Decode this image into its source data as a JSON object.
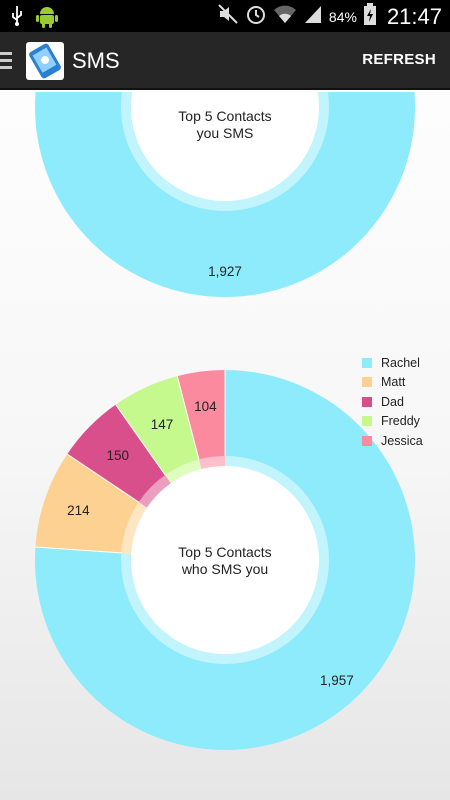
{
  "status_bar": {
    "battery_percent": "84%",
    "time": "21:47",
    "icons": [
      "usb-icon",
      "android-icon",
      "mute-icon",
      "alarm-icon",
      "wifi-icon",
      "signal-icon",
      "battery-icon"
    ]
  },
  "action_bar": {
    "title": "SMS",
    "refresh_label": "REFRESH",
    "icons": [
      "menu-icon",
      "app-icon"
    ]
  },
  "colors": {
    "Rachel": "#8eebfc",
    "Matt": "#fdd192",
    "Dad": "#d84f8c",
    "Freddy": "#c5f98e",
    "Jessica": "#fc8a9e"
  },
  "chart_data": [
    {
      "type": "pie",
      "title": "Top 5 Contacts you SMS",
      "categories": [
        "Rachel"
      ],
      "values": [
        1927
      ],
      "labels": [
        "1,927"
      ],
      "legend": false
    },
    {
      "type": "pie",
      "title": "Top 5 Contacts who SMS you",
      "categories": [
        "Rachel",
        "Matt",
        "Dad",
        "Freddy",
        "Jessica"
      ],
      "values": [
        1957,
        214,
        150,
        147,
        104
      ],
      "labels": [
        "1,957",
        "214",
        "150",
        "147",
        "104"
      ],
      "legend": true,
      "legend_position": "top-right"
    }
  ]
}
